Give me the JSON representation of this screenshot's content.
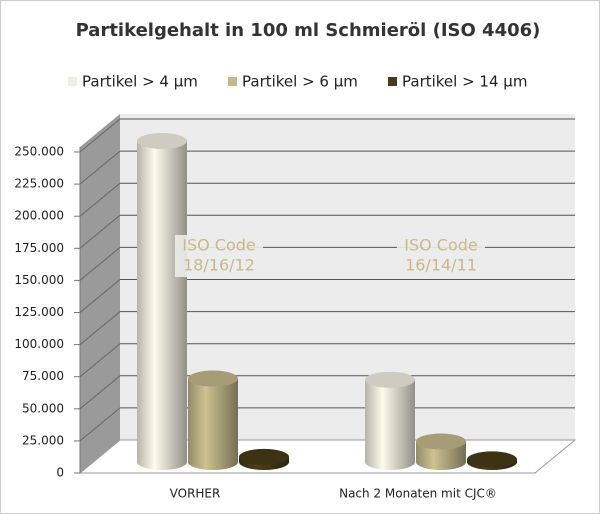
{
  "chart_data": {
    "type": "bar3d",
    "title": "Partikelgehalt in 100 ml Schmieröl (ISO 4406)",
    "categories": [
      "VORHER",
      "Nach 2 Monaten mit CJC®"
    ],
    "series": [
      {
        "name": "Partikel > 4 µm",
        "color": "#f2efe2",
        "values": [
          250000,
          64000
        ]
      },
      {
        "name": "Partikel > 6 µm",
        "color": "#c3b98b",
        "values": [
          65000,
          16000
        ]
      },
      {
        "name": "Partikel > 14 µm",
        "color": "#473c19",
        "values": [
          4000,
          2000
        ]
      }
    ],
    "ylim": [
      0,
      250000
    ],
    "yticks": [
      0,
      {
        "value": 25000,
        "label": "25.000"
      },
      {
        "value": 50000,
        "label": "50.000"
      },
      {
        "value": 75000,
        "label": "75.000"
      },
      {
        "value": 100000,
        "label": "100.000"
      },
      {
        "value": 125000,
        "label": "125.000"
      },
      {
        "value": 150000,
        "label": "150.000"
      },
      {
        "value": 175000,
        "label": "175.000"
      },
      {
        "value": 200000,
        "label": "200.000"
      },
      {
        "value": 225000,
        "label": "225.000"
      },
      {
        "value": 250000,
        "label": "250.000"
      }
    ],
    "annotations": [
      [
        "ISO Code",
        "18/16/12"
      ],
      [
        "ISO Code",
        "16/14/11"
      ]
    ],
    "grid": true,
    "legend": "top"
  }
}
